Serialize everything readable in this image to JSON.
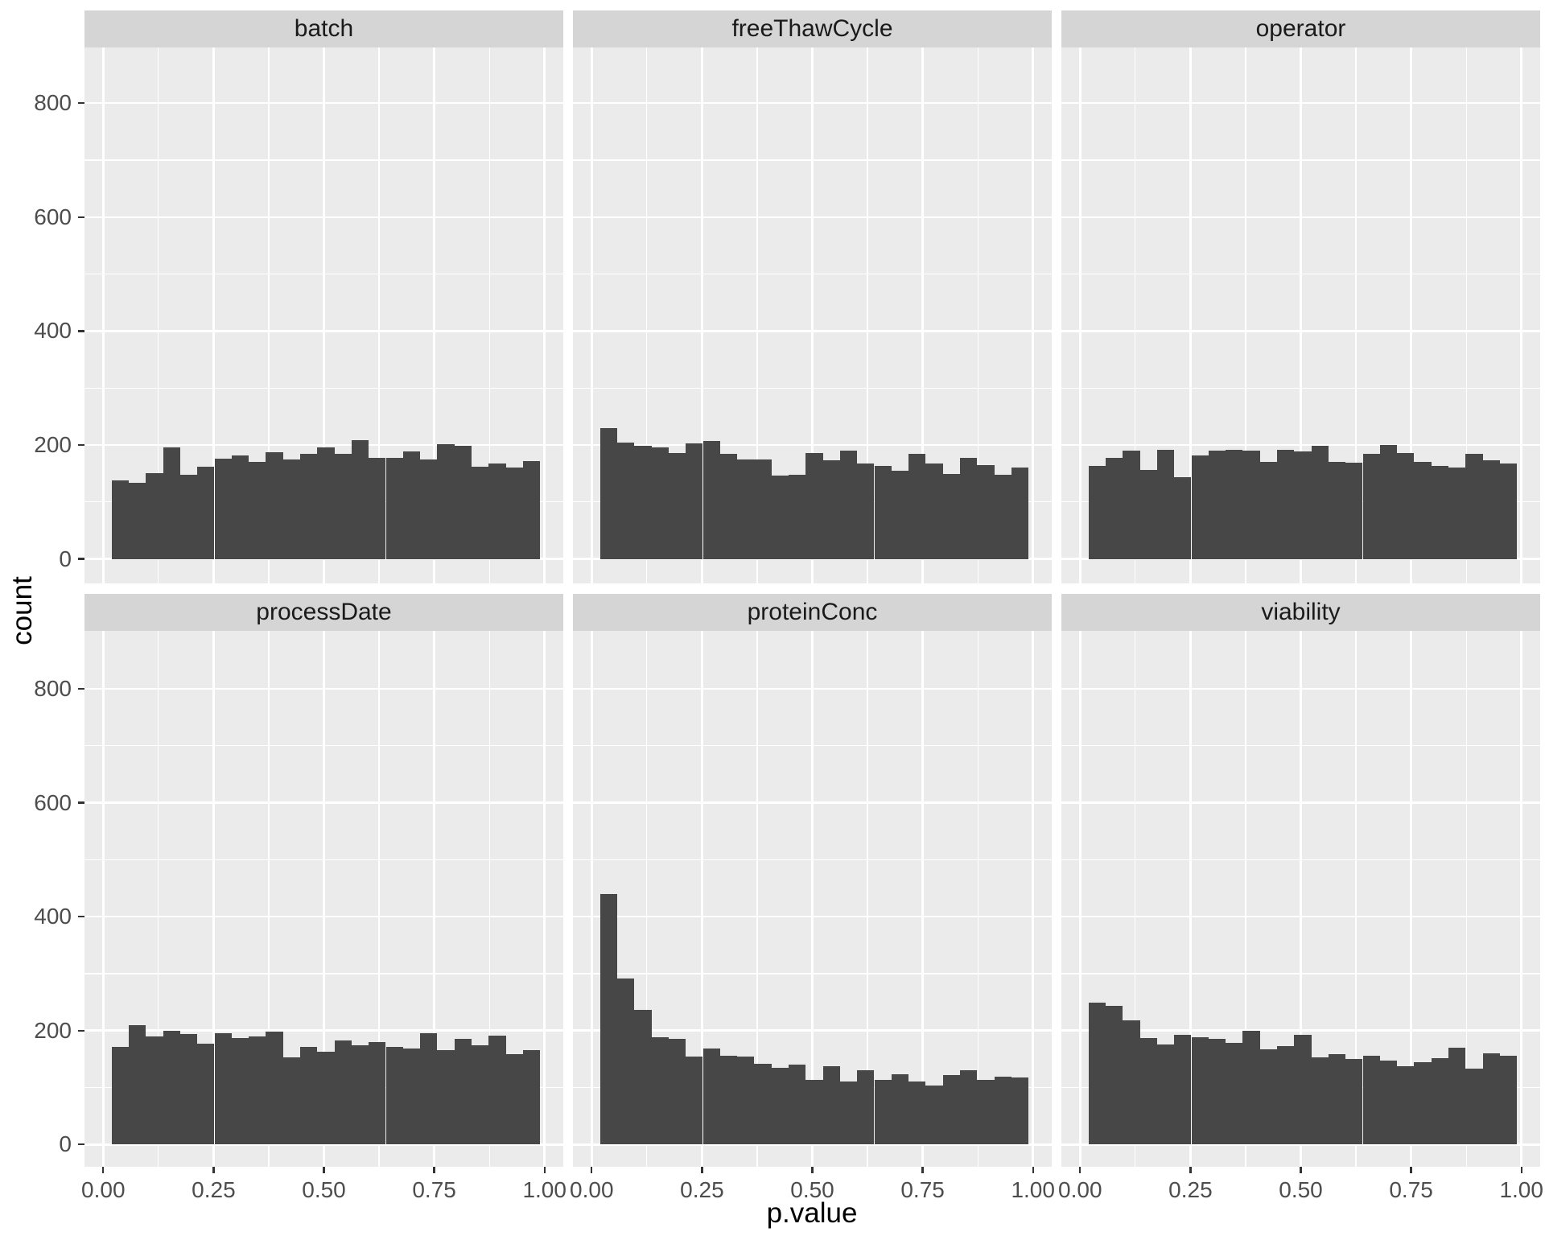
{
  "chart_data": {
    "type": "bar",
    "subtype": "faceted-histogram",
    "title": "",
    "xlabel": "p.value",
    "ylabel": "count",
    "facet_layout": {
      "rows": 2,
      "cols": 3
    },
    "x_tick_labels": [
      "0.00",
      "0.25",
      "0.50",
      "0.75",
      "1.00"
    ],
    "x_ticks": [
      0,
      0.25,
      0.5,
      0.75,
      1.0
    ],
    "y_tick_labels": [
      "0",
      "200",
      "400",
      "600",
      "800"
    ],
    "y_ticks": [
      0,
      200,
      400,
      600,
      800
    ],
    "y_minor_ticks": [
      100,
      300,
      500,
      700
    ],
    "x_minor_ticks": [
      0.125,
      0.375,
      0.625,
      0.875
    ],
    "ylim": [
      0,
      898
    ],
    "xlim": [
      0,
      1
    ],
    "bins": 25,
    "bins_x_start": 0.019,
    "bins_x_end": 0.99,
    "grid": true,
    "legend_position": "none",
    "panels": [
      {
        "label": "batch",
        "values": [
          138,
          134,
          151,
          196,
          148,
          162,
          176,
          181,
          170,
          187,
          175,
          184,
          196,
          185,
          209,
          178,
          177,
          189,
          174,
          202,
          199,
          162,
          167,
          161,
          172
        ]
      },
      {
        "label": "freeThawCycle",
        "values": [
          230,
          204,
          199,
          196,
          186,
          203,
          207,
          185,
          174,
          175,
          146,
          148,
          186,
          173,
          190,
          168,
          163,
          155,
          184,
          168,
          149,
          178,
          164,
          148,
          160
        ]
      },
      {
        "label": "operator",
        "values": [
          163,
          178,
          190,
          156,
          192,
          143,
          182,
          190,
          192,
          190,
          171,
          192,
          189,
          198,
          170,
          169,
          184,
          200,
          186,
          170,
          163,
          161,
          185,
          173,
          168
        ]
      },
      {
        "label": "processDate",
        "values": [
          172,
          210,
          190,
          199,
          194,
          177,
          195,
          187,
          189,
          198,
          153,
          171,
          163,
          183,
          174,
          180,
          172,
          169,
          195,
          165,
          185,
          174,
          191,
          158,
          166
        ]
      },
      {
        "label": "proteinConc",
        "values": [
          440,
          292,
          236,
          188,
          185,
          155,
          168,
          156,
          154,
          141,
          135,
          140,
          113,
          138,
          111,
          130,
          114,
          124,
          110,
          103,
          122,
          130,
          113,
          119,
          117
        ]
      },
      {
        "label": "viability",
        "values": [
          249,
          244,
          218,
          187,
          176,
          192,
          188,
          185,
          179,
          200,
          167,
          173,
          193,
          153,
          158,
          150,
          156,
          147,
          138,
          144,
          152,
          170,
          133,
          160,
          156
        ]
      }
    ],
    "colors": {
      "bar": "#474747",
      "panel_bg": "#EBEBEB",
      "strip_bg": "#D5D5D5",
      "grid_line": "#FFFFFF",
      "tick_mark": "#333333",
      "tick_label": "#4D4D4D",
      "strip_text": "#1A1A1A",
      "axis_title": "#000000",
      "background": "#FFFFFF"
    }
  }
}
